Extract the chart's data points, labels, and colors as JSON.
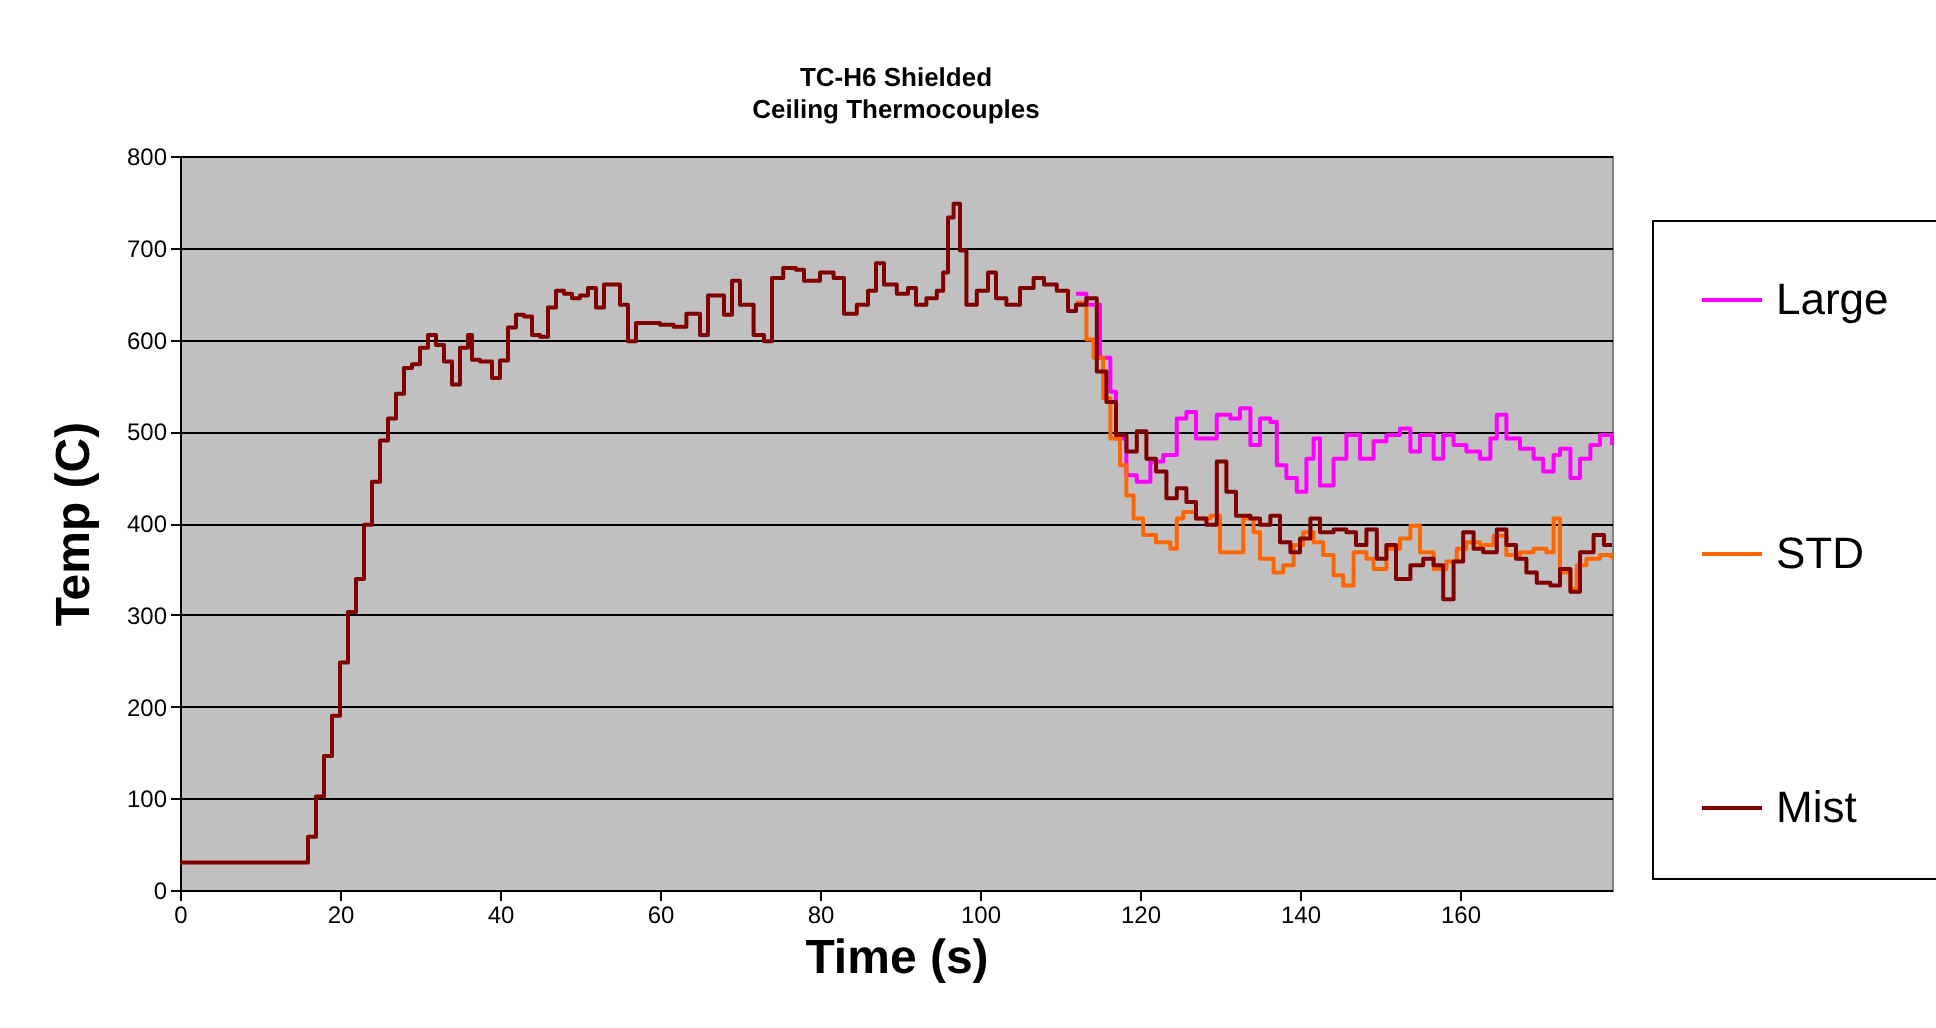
{
  "chart_data": {
    "type": "step",
    "title": "TC-H6 Shielded",
    "subtitle": "Ceiling Thermocouples",
    "xlabel": "Time (s)",
    "ylabel": "Temp (C)",
    "xlim": [
      0,
      179
    ],
    "xticks": [
      0,
      20,
      40,
      60,
      80,
      100,
      120,
      140,
      160
    ],
    "ylim": [
      0,
      800
    ],
    "yticks": [
      0,
      100,
      200,
      300,
      400,
      500,
      600,
      700,
      800
    ],
    "grid": "y",
    "legend": "right",
    "marker": "none",
    "line_style": "solid",
    "series": [
      {
        "name": "Large",
        "color": "#ff00ff",
        "x": [
          112,
          113.3,
          115,
          116.3,
          117,
          118.3,
          119.6,
          121.3,
          122.9,
          124.6,
          125.8,
          127,
          128.3,
          129.6,
          131.3,
          132.5,
          133.8,
          135,
          136.3,
          137.1,
          138.3,
          139.6,
          140.8,
          141.7,
          142.5,
          144.2,
          145.8,
          147.5,
          149.2,
          150.8,
          152.5,
          153.8,
          155,
          156.7,
          157.9,
          159.2,
          160.8,
          162.5,
          163.8,
          164.6,
          165.8,
          167.5,
          169.2,
          170.4,
          171.7,
          172.5,
          173.8,
          175,
          176.3,
          177.5,
          179
        ],
        "values": [
          650,
          638,
          580,
          543,
          492,
          452,
          445,
          467,
          474,
          514,
          521,
          492,
          492,
          518,
          514,
          525,
          485,
          514,
          510,
          463,
          449,
          434,
          470,
          492,
          441,
          470,
          496,
          470,
          489,
          496,
          503,
          478,
          496,
          470,
          496,
          485,
          478,
          470,
          492,
          518,
          492,
          481,
          470,
          456,
          474,
          481,
          449,
          470,
          485,
          496,
          485
        ]
      },
      {
        "name": "STD",
        "color": "#ff6600",
        "x": [
          112,
          113.3,
          114.2,
          115.4,
          116.3,
          117.5,
          118.3,
          119.2,
          120.4,
          122,
          123.8,
          124.6,
          125.4,
          127,
          128.8,
          130,
          131.7,
          132.9,
          134.2,
          135,
          136.7,
          137.9,
          139.2,
          140.4,
          141.7,
          142.9,
          144.2,
          145.4,
          146.7,
          148.3,
          149.2,
          150.8,
          152.5,
          153.8,
          155,
          156.7,
          158.3,
          159.6,
          160.8,
          162.5,
          164.2,
          165.8,
          167.5,
          169.2,
          170.8,
          171.7,
          172.5,
          173.8,
          174.6,
          175.8,
          177.5,
          179
        ],
        "values": [
          640,
          600,
          580,
          536,
          492,
          463,
          430,
          405,
          387,
          379,
          372,
          405,
          412,
          405,
          408,
          368,
          368,
          405,
          390,
          361,
          346,
          354,
          376,
          390,
          379,
          365,
          343,
          332,
          368,
          361,
          350,
          372,
          383,
          397,
          368,
          350,
          358,
          372,
          379,
          376,
          386,
          365,
          368,
          372,
          368,
          405,
          346,
          328,
          354,
          361,
          365,
          361
        ]
      },
      {
        "name": "Mist",
        "color": "#800000",
        "x": [
          0,
          15,
          16,
          17,
          18,
          19,
          20,
          21,
          22,
          23,
          24,
          25,
          26,
          27,
          28,
          29,
          30,
          31,
          32,
          33,
          34,
          35,
          36,
          36.5,
          37.5,
          39,
          40,
          41,
          42,
          43,
          44,
          45,
          46,
          47,
          48,
          49,
          50,
          51,
          52,
          53,
          54,
          55,
          56,
          57,
          60,
          61.7,
          63.3,
          65,
          66,
          68,
          69,
          70,
          71.7,
          73,
          74,
          75.4,
          77,
          78,
          80,
          81.7,
          83,
          84.6,
          86,
          87,
          88,
          89.6,
          91,
          92,
          93.3,
          94.6,
          95.4,
          96,
          96.7,
          97.5,
          98.3,
          99.6,
          101,
          102,
          103.3,
          105,
          106.7,
          108,
          109.6,
          111,
          112,
          113.3,
          114.6,
          115.8,
          117,
          118.3,
          119.6,
          120.8,
          122,
          123.3,
          124.6,
          125.8,
          127,
          128.3,
          129.6,
          130.8,
          132,
          133.8,
          135,
          136.3,
          137.5,
          138.8,
          140,
          141.3,
          142.5,
          144.2,
          145.8,
          147,
          148.3,
          149.6,
          150.8,
          152,
          153.8,
          155.4,
          156.7,
          157.9,
          159.2,
          160.4,
          161.7,
          162.9,
          164.6,
          165.8,
          167,
          168.3,
          169.6,
          171.3,
          172.5,
          173.8,
          175,
          176.7,
          178,
          179
        ],
        "values": [
          30,
          30,
          58,
          102,
          146,
          190,
          248,
          303,
          339,
          398,
          445,
          490,
          514,
          541,
          569,
          573,
          591,
          605,
          594,
          576,
          551,
          591,
          605,
          578,
          576,
          558,
          577,
          613,
          627,
          625,
          605,
          603,
          635,
          653,
          650,
          645,
          648,
          656,
          635,
          660,
          660,
          638,
          598,
          618,
          616,
          614,
          628,
          605,
          648,
          627,
          664,
          638,
          605,
          598,
          667,
          678,
          676,
          664,
          673,
          667,
          628,
          638,
          653,
          683,
          660,
          650,
          656,
          638,
          645,
          653,
          673,
          733,
          748,
          697,
          638,
          653,
          673,
          645,
          638,
          656,
          667,
          660,
          653,
          631,
          638,
          645,
          565,
          532,
          496,
          478,
          500,
          470,
          456,
          427,
          438,
          423,
          405,
          398,
          467,
          434,
          408,
          405,
          398,
          408,
          379,
          368,
          383,
          405,
          390,
          393,
          390,
          376,
          393,
          361,
          376,
          339,
          354,
          361,
          354,
          317,
          358,
          390,
          372,
          368,
          393,
          376,
          361,
          346,
          335,
          332,
          350,
          325,
          368,
          387,
          376,
          376
        ]
      }
    ]
  }
}
